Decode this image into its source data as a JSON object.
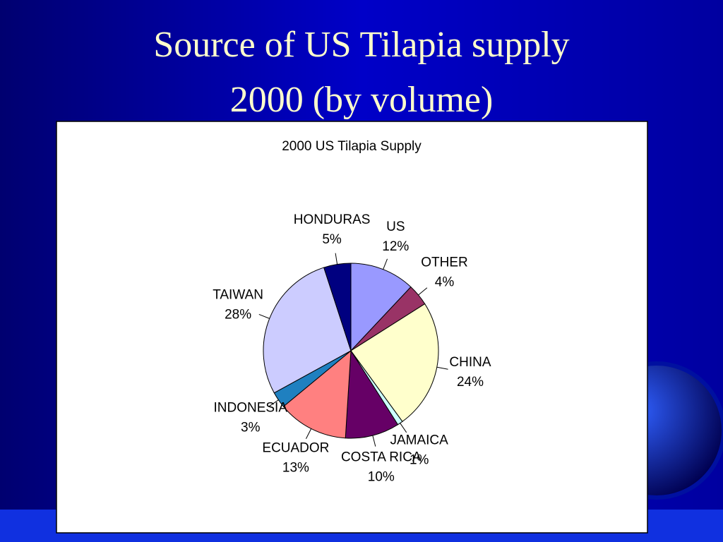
{
  "slide": {
    "title_lines": [
      "Source of US Tilapia supply",
      "2000 (by volume)"
    ]
  },
  "chart_data": {
    "type": "pie",
    "title": "2000 US Tilapia Supply",
    "categories": [
      "US",
      "OTHER",
      "CHINA",
      "JAMAICA",
      "COSTA RICA",
      "ECUADOR",
      "INDONESIA",
      "TAIWAN",
      "HONDURAS"
    ],
    "values": [
      12,
      4,
      24,
      1,
      10,
      13,
      3,
      28,
      5
    ],
    "value_labels": [
      "12%",
      "4%",
      "24%",
      "1%",
      "10%",
      "13%",
      "3%",
      "28%",
      "5%"
    ],
    "colors": [
      "#9999ff",
      "#993366",
      "#ffffcc",
      "#ccffff",
      "#660066",
      "#ff8080",
      "#1f80c0",
      "#ccccff",
      "#000080"
    ]
  }
}
